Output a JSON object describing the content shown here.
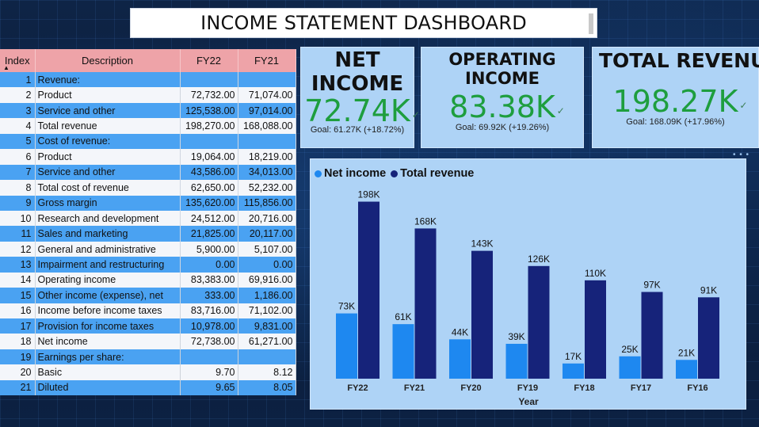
{
  "title": "INCOME STATEMENT DASHBOARD",
  "table": {
    "headers": [
      "Index",
      "Description",
      "FY22",
      "FY21"
    ],
    "rows": [
      [
        "1",
        "Revenue:",
        "",
        ""
      ],
      [
        "2",
        "Product",
        "72,732.00",
        "71,074.00"
      ],
      [
        "3",
        "Service and other",
        "125,538.00",
        "97,014.00"
      ],
      [
        "4",
        "Total revenue",
        "198,270.00",
        "168,088.00"
      ],
      [
        "5",
        "Cost of revenue:",
        "",
        ""
      ],
      [
        "6",
        "Product",
        "19,064.00",
        "18,219.00"
      ],
      [
        "7",
        "Service and other",
        "43,586.00",
        "34,013.00"
      ],
      [
        "8",
        "Total cost of revenue",
        "62,650.00",
        "52,232.00"
      ],
      [
        "9",
        "Gross margin",
        "135,620.00",
        "115,856.00"
      ],
      [
        "10",
        "Research and development",
        "24,512.00",
        "20,716.00"
      ],
      [
        "11",
        "Sales and marketing",
        "21,825.00",
        "20,117.00"
      ],
      [
        "12",
        "General and administrative",
        "5,900.00",
        "5,107.00"
      ],
      [
        "13",
        "Impairment and restructuring",
        "0.00",
        "0.00"
      ],
      [
        "14",
        "Operating income",
        "83,383.00",
        "69,916.00"
      ],
      [
        "15",
        "Other income (expense), net",
        "333.00",
        "1,186.00"
      ],
      [
        "16",
        "Income before income taxes",
        "83,716.00",
        "71,102.00"
      ],
      [
        "17",
        "Provision for income taxes",
        "10,978.00",
        "9,831.00"
      ],
      [
        "18",
        "Net income",
        "72,738.00",
        "61,271.00"
      ],
      [
        "19",
        "Earnings per share:",
        "",
        ""
      ],
      [
        "20",
        "Basic",
        "9.70",
        "8.12"
      ],
      [
        "21",
        "Diluted",
        "9.65",
        "8.05"
      ]
    ]
  },
  "kpis": {
    "net_income": {
      "label_line1": "NET",
      "label_line2": "INCOME",
      "value": "72.74K",
      "goal": "Goal: 61.27K (+18.72%)"
    },
    "operating_income": {
      "label_line1": "OPERATING",
      "label_line2": "INCOME",
      "value": "83.38K",
      "goal": "Goal: 69.92K (+19.26%)"
    },
    "total_revenue": {
      "label": "TOTAL REVENUE",
      "value": "198.27K",
      "goal": "Goal: 168.09K (+17.96%)"
    }
  },
  "colors": {
    "net_income": "#1e88f0",
    "total_revenue": "#16237a",
    "kpi_value": "#1e9e3e",
    "header": "#eea3a8",
    "row_blue": "#4aa2f2"
  },
  "chart_data": {
    "type": "bar",
    "xlabel": "Year",
    "categories": [
      "FY22",
      "FY21",
      "FY20",
      "FY19",
      "FY18",
      "FY17",
      "FY16"
    ],
    "series": [
      {
        "name": "Net income",
        "values": [
          73,
          61,
          44,
          39,
          17,
          25,
          21
        ],
        "labels": [
          "73K",
          "61K",
          "44K",
          "39K",
          "17K",
          "25K",
          "21K"
        ]
      },
      {
        "name": "Total revenue",
        "values": [
          198,
          168,
          143,
          126,
          110,
          97,
          91
        ],
        "labels": [
          "198K",
          "168K",
          "143K",
          "126K",
          "110K",
          "97K",
          "91K"
        ]
      }
    ],
    "ylim": [
      0,
      210
    ],
    "legend": "top-left",
    "grid": false
  }
}
